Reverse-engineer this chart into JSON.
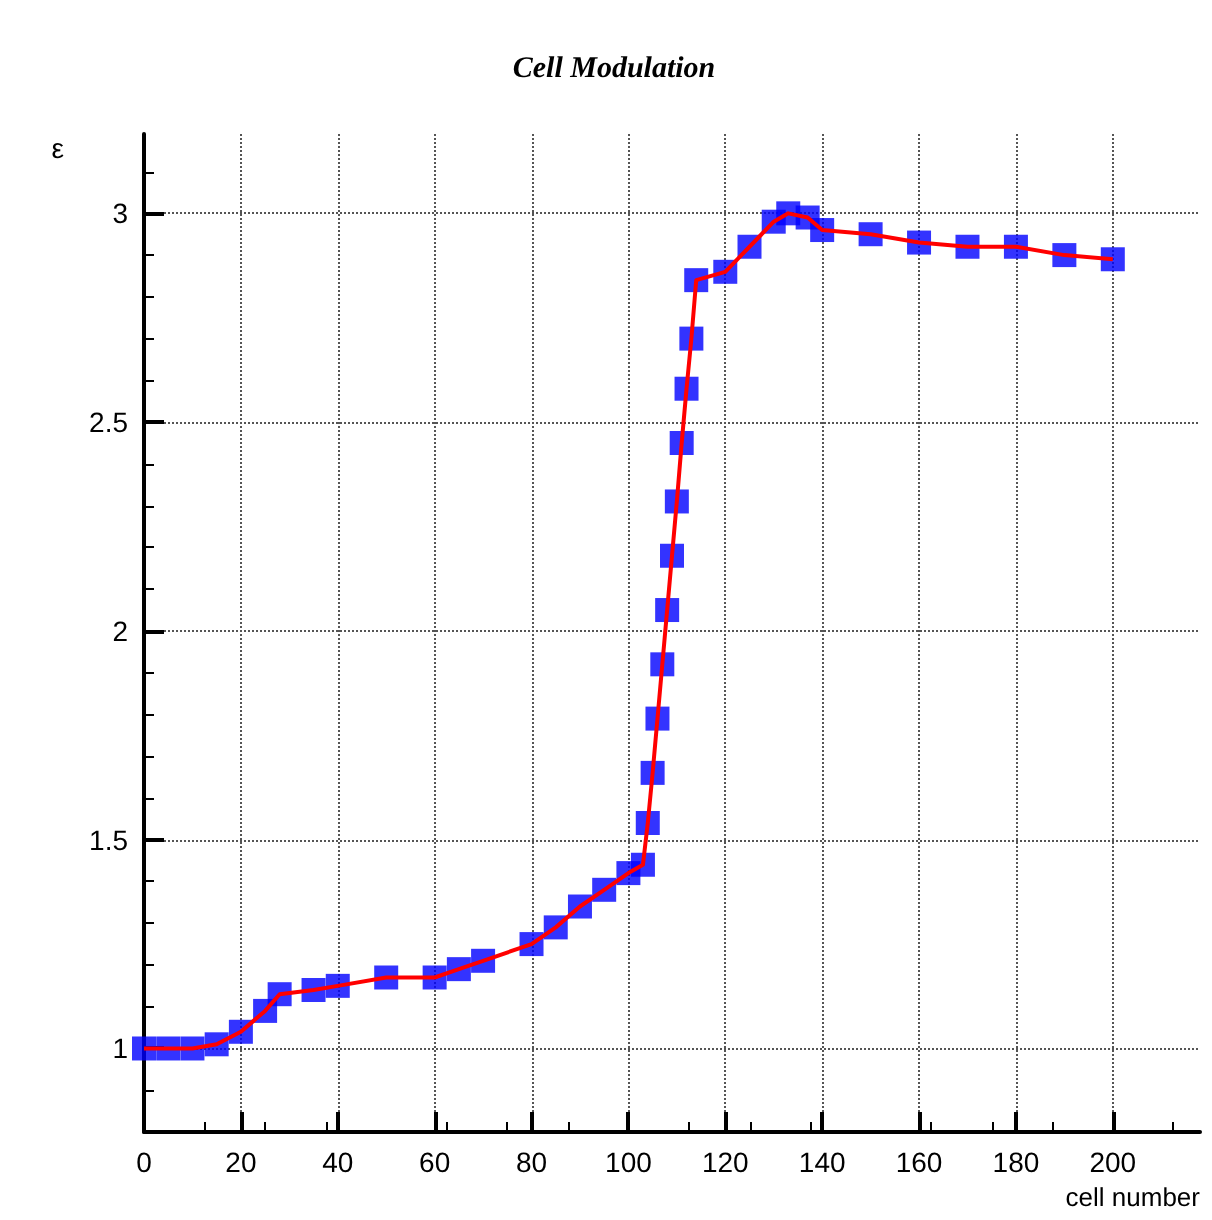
{
  "chart_data": {
    "type": "line",
    "title": "Cell Modulation",
    "xlabel": "cell number",
    "ylabel": "ε",
    "x": [
      0,
      5,
      10,
      15,
      20,
      25,
      28,
      35,
      40,
      50,
      60,
      65,
      70,
      80,
      85,
      90,
      95,
      100,
      103,
      104,
      105,
      106,
      107,
      108,
      109,
      110,
      111,
      112,
      113,
      114,
      120,
      125,
      130,
      133,
      137,
      140,
      150,
      160,
      170,
      180,
      190,
      200
    ],
    "series": [
      {
        "color": "#ff0000",
        "marker": "none",
        "values": [
          1.0,
          1.0,
          1.0,
          1.01,
          1.04,
          1.09,
          1.13,
          1.14,
          1.15,
          1.17,
          1.17,
          1.19,
          1.21,
          1.25,
          1.29,
          1.34,
          1.38,
          1.42,
          1.44,
          1.54,
          1.66,
          1.79,
          1.92,
          2.05,
          2.18,
          2.31,
          2.45,
          2.58,
          2.7,
          2.84,
          2.86,
          2.92,
          2.98,
          3.0,
          2.99,
          2.96,
          2.95,
          2.93,
          2.92,
          2.92,
          2.9,
          2.89
        ]
      },
      {
        "type": "scatter",
        "color": "#0000ff",
        "marker": "square",
        "values": [
          1.0,
          1.0,
          1.0,
          1.01,
          1.04,
          1.09,
          1.13,
          1.14,
          1.15,
          1.17,
          1.17,
          1.19,
          1.21,
          1.25,
          1.29,
          1.34,
          1.38,
          1.42,
          1.44,
          1.54,
          1.66,
          1.79,
          1.92,
          2.05,
          2.18,
          2.31,
          2.45,
          2.58,
          2.7,
          2.84,
          2.86,
          2.92,
          2.98,
          3.0,
          2.99,
          2.96,
          2.95,
          2.93,
          2.92,
          2.92,
          2.9,
          2.89
        ]
      }
    ],
    "xlim": [
      0,
      218
    ],
    "xticks": [
      0,
      20,
      40,
      60,
      80,
      100,
      120,
      140,
      160,
      180,
      200
    ],
    "ylim": [
      0.8,
      3.19
    ],
    "yticks": [
      1,
      1.5,
      2,
      2.5,
      3
    ],
    "grid": true
  }
}
